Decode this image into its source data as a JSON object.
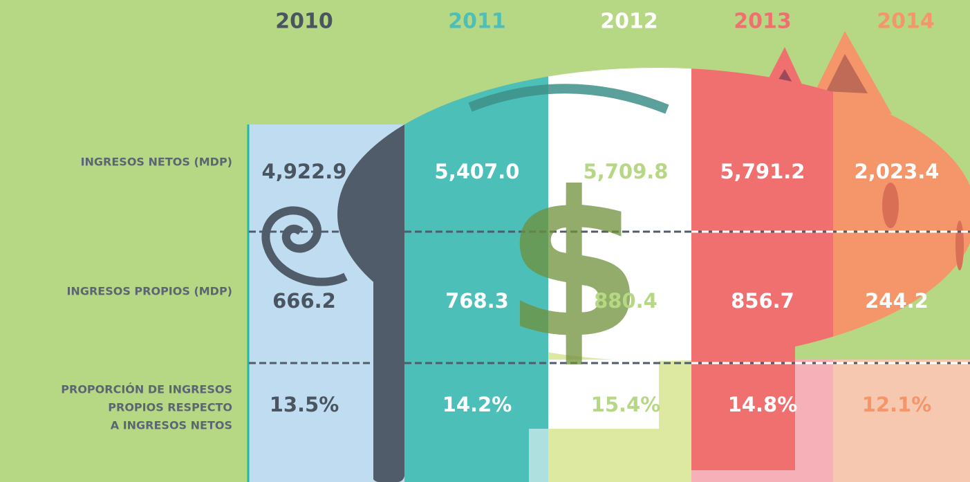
{
  "table": {
    "columns": [
      "2010",
      "2011",
      "2012",
      "2013",
      "2014"
    ],
    "row_labels": [
      [
        "INGRESOS NETOS (MDP)"
      ],
      [
        "INGRESOS PROPIOS (MDP)"
      ],
      [
        "PROPORCIÓN DE INGRESOS",
        "PROPIOS RESPECTO",
        "A INGRESOS NETOS"
      ]
    ],
    "rows": [
      [
        "4,922.9",
        "5,407.0",
        "5,709.8",
        "5,791.2",
        "2,023.4"
      ],
      [
        "666.2",
        "768.3",
        "880.4",
        "856.7",
        "244.2"
      ],
      [
        "13.5%",
        "14.2%",
        "15.4%",
        "14.8%",
        "12.1%"
      ]
    ]
  },
  "symbol": "$"
}
